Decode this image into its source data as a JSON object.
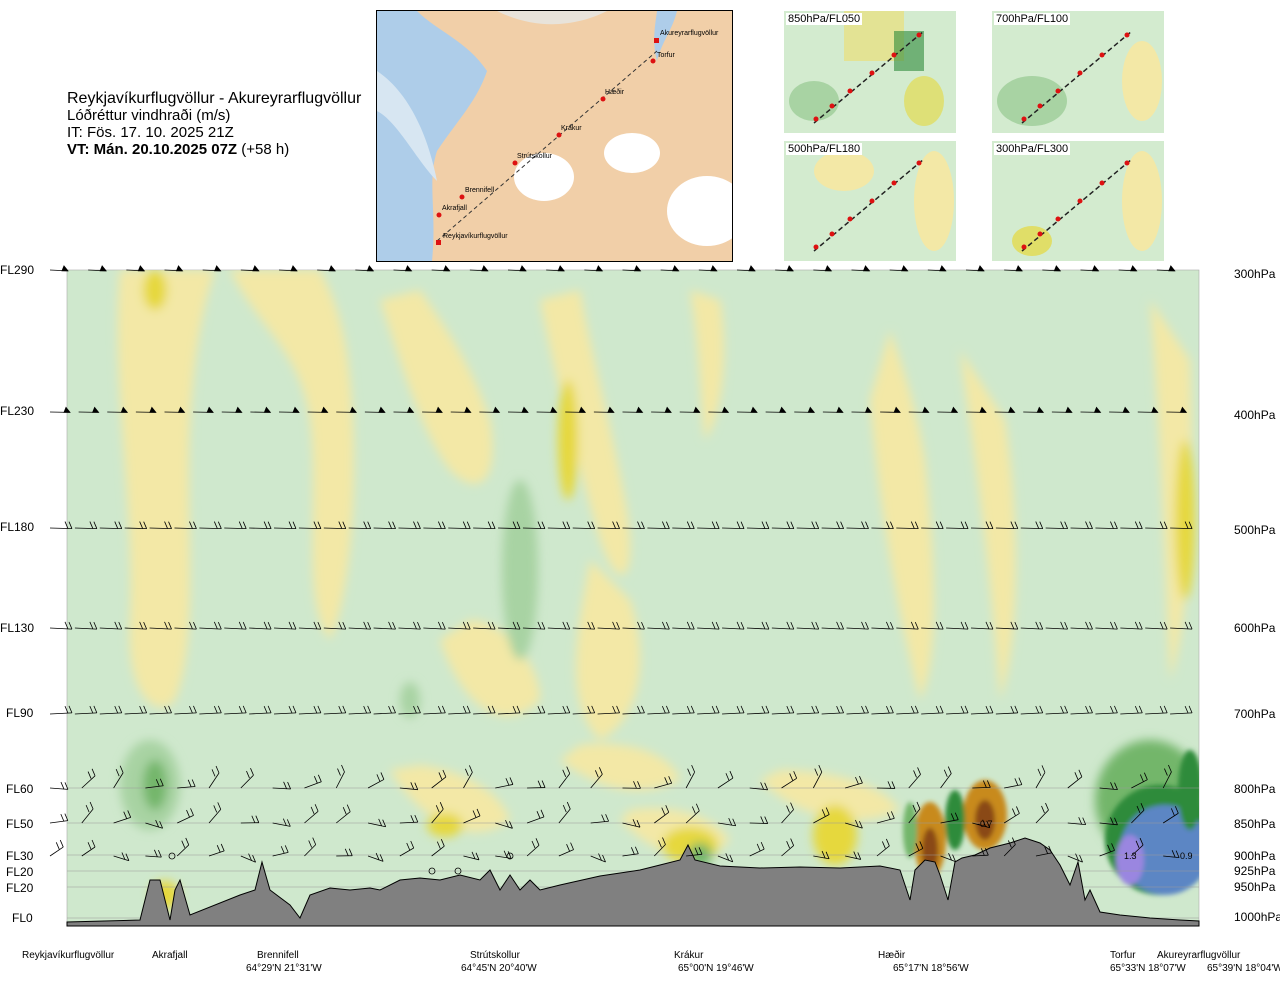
{
  "title": {
    "route": "Reykjavíkurflugvöllur - Akureyrarflugvöllur",
    "variable": "Lóðréttur vindhraði (m/s)",
    "it": "IT: Fös. 17. 10. 2025 21Z",
    "vt": "VT: Mán. 20.10.2025 07Z",
    "vt_offset": "(+58 h)"
  },
  "insets": [
    {
      "label": "850hPa/FL050"
    },
    {
      "label": "700hPa/FL100"
    },
    {
      "label": "500hPa/FL180"
    },
    {
      "label": "300hPa/FL300"
    }
  ],
  "route_map": {
    "points": [
      "Akureyrarflugvöllur",
      "Torfur",
      "Hæðir",
      "Krákur",
      "Strútskollur",
      "Brennifell",
      "Akrafjall",
      "Reykjavíkurflugvöllur"
    ]
  },
  "flight_levels": [
    "FL290",
    "FL230",
    "FL180",
    "FL130",
    "FL90",
    "FL60",
    "FL50",
    "FL30",
    "FL20",
    "FL20",
    "FL0"
  ],
  "pressure_levels": [
    "300hPa",
    "400hPa",
    "500hPa",
    "600hPa",
    "700hPa",
    "800hPa",
    "850hPa",
    "900hPa",
    "925hPa",
    "950hPa",
    "1000hPa"
  ],
  "bottom_axis": [
    {
      "name": "Reykjavíkurflugvöllur",
      "coord": ""
    },
    {
      "name": "Akrafjall",
      "coord": ""
    },
    {
      "name": "Brennifell",
      "coord": "64°29'N 21°31'W"
    },
    {
      "name": "Strútskollur",
      "coord": "64°45'N 20°40'W"
    },
    {
      "name": "Krákur",
      "coord": "65°00'N 19°46'W"
    },
    {
      "name": "Hæðir",
      "coord": "65°17'N 18°56'W"
    },
    {
      "name": "Torfur",
      "coord": "65°33'N 18°07'W"
    },
    {
      "name": "Akureyrarflugvöllur",
      "coord": "65°39'N 18°04'W"
    }
  ],
  "chart_data": {
    "type": "heatmap",
    "title": "Reykjavíkurflugvöllur - Akureyrarflugvöllur",
    "variable": "Lóðréttur vindhraði (m/s)",
    "y_levels_hpa": [
      300,
      400,
      500,
      600,
      700,
      800,
      850,
      900,
      925,
      950,
      1000
    ],
    "contour_labels": [
      "-0.7",
      "1.3",
      "0.9"
    ],
    "colors": {
      "strong_up_blue": "#5b86c4",
      "up_purple": "#9a86e0",
      "up_green_dark": "#2e8b3a",
      "up_green": "#73b66a",
      "weak_up": "#cfe8cd",
      "neutral": "#f7fbe9",
      "weak_down": "#f3e8a6",
      "down_yellow": "#e6d83c",
      "down_orange": "#c88a1c",
      "down_brown": "#8a4a12",
      "terrain": "#808080"
    }
  }
}
